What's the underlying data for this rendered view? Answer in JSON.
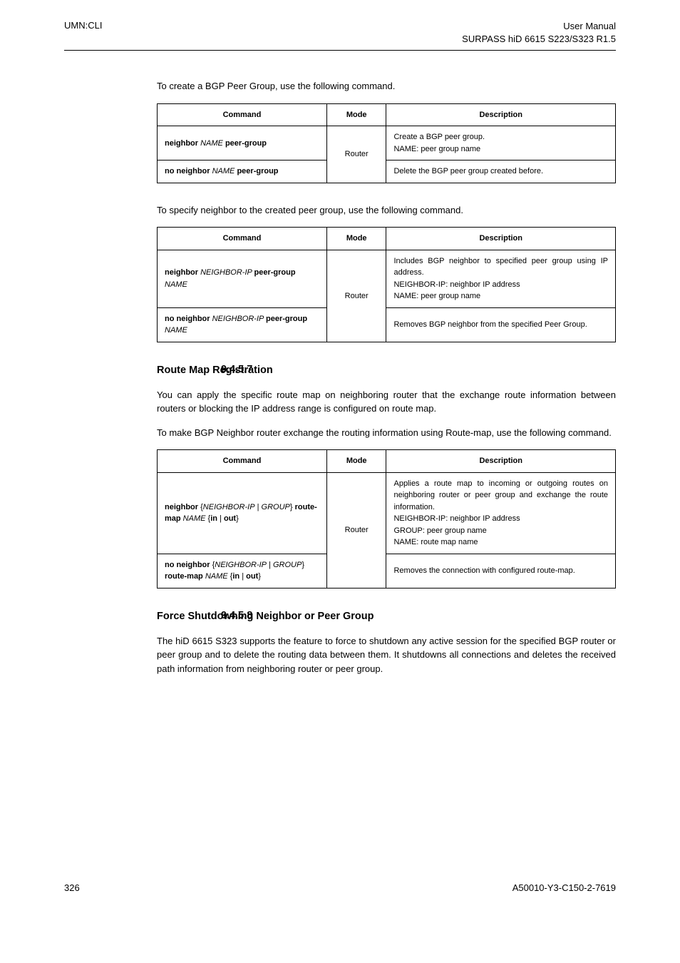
{
  "header": {
    "left": "UMN:CLI",
    "right_line1": "User Manual",
    "right_line2": "SURPASS hiD 6615 S223/S323 R1.5"
  },
  "intro1": "To create a BGP Peer Group, use the following command.",
  "table1": {
    "headers": [
      "Command",
      "Mode",
      "Description"
    ],
    "rows": [
      {
        "cmd_bold": "neighbor ",
        "cmd_italic": "NAME ",
        "cmd_bold2": "peer-group",
        "mode": "Router",
        "desc_line1": "Create a BGP peer group.",
        "desc_line2": "NAME: peer group name"
      },
      {
        "cmd_bold": "no neighbor ",
        "cmd_italic": "NAME ",
        "cmd_bold2": "peer-group",
        "desc": "Delete the BGP peer group created before."
      }
    ]
  },
  "intro2": "To specify neighbor to the created peer group, use the following command.",
  "table2": {
    "headers": [
      "Command",
      "Mode",
      "Description"
    ],
    "rows": [
      {
        "cmd_bold": "neighbor ",
        "cmd_italic": "NEIGHBOR-IP ",
        "cmd_bold2": "peer-group ",
        "cmd_italic2": "NAME",
        "mode": "Router",
        "desc_l1": "Includes BGP neighbor to specified peer group using IP address.",
        "desc_l2": "NEIGHBOR-IP: neighbor IP address",
        "desc_l3": "NAME: peer group name"
      },
      {
        "cmd_bold": "no neighbor ",
        "cmd_italic": "NEIGHBOR-IP ",
        "cmd_bold2": "peer-group ",
        "cmd_italic2": "NAME",
        "desc": "Removes BGP neighbor from the specified Peer Group."
      }
    ]
  },
  "section1": {
    "num": "9.4.5.7",
    "title": "Route Map Registration",
    "p1": "You can apply the specific route map on neighboring router that the exchange route information between routers or blocking the IP address range is configured on route map.",
    "p2": "To make BGP Neighbor router exchange the routing information using Route-map, use the following command."
  },
  "table3": {
    "headers": [
      "Command",
      "Mode",
      "Description"
    ],
    "mode": "Router",
    "row1": {
      "cmd_b1": "neighbor",
      "cmd_brace_open": " {",
      "cmd_i1": "NEIGHBOR-IP",
      "cmd_sep1": " | ",
      "cmd_i2": "GROUP",
      "cmd_brace_close": "} ",
      "cmd_b2": "route-map",
      "cmd_i3": " NAME",
      "cmd_brace2": " {",
      "cmd_b3": "in",
      "cmd_sep2": " | ",
      "cmd_b4": "out",
      "cmd_end": "}",
      "d1": "Applies a route map to incoming or outgoing routes on neighboring router or peer group and exchange the route information.",
      "d2": "NEIGHBOR-IP: neighbor IP address",
      "d3": "GROUP: peer group name",
      "d4": "NAME: route map name"
    },
    "row2": {
      "cmd_b1": "no neighbor",
      "cmd_brace_open": " {",
      "cmd_i1": "NEIGHBOR-IP",
      "cmd_sep1": " | ",
      "cmd_i2": "GROUP",
      "cmd_brace_close": "} ",
      "cmd_b2": "route-map",
      "cmd_i3": " NAME",
      "cmd_brace2": " {",
      "cmd_b3": "in",
      "cmd_sep2": " | ",
      "cmd_b4": "out",
      "cmd_end": "}",
      "desc": "Removes the connection with configured route-map."
    }
  },
  "section2": {
    "num": "9.4.5.8",
    "title": "Force Shutdowning Neighbor or Peer Group",
    "p1": "The hiD 6615 S323 supports the feature to force to shutdown any active session for the specified BGP router or peer group and to delete the routing data between them. It shutdowns all connections and deletes the received path information from neighboring router or peer group."
  },
  "footer": {
    "page": "326",
    "doc": "A50010-Y3-C150-2-7619"
  }
}
